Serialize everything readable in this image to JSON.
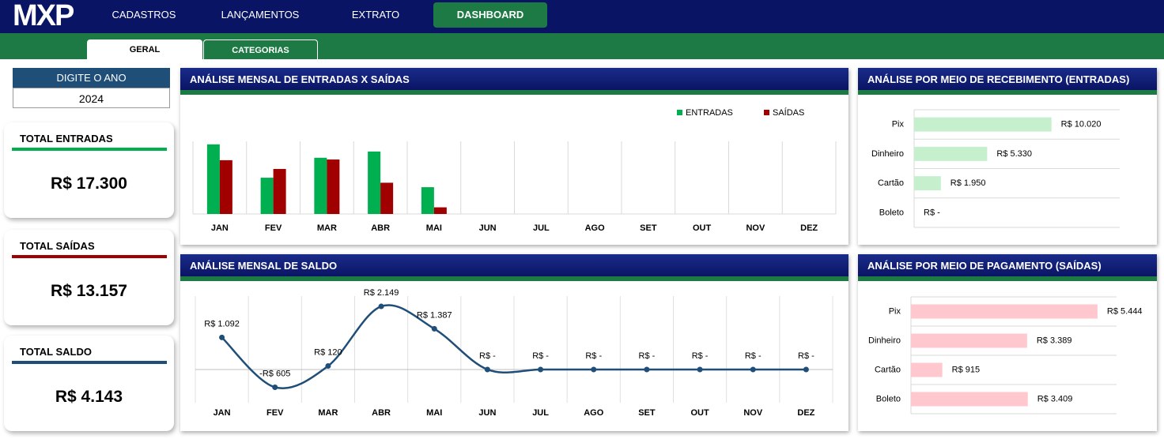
{
  "nav": {
    "logo": "MXP",
    "items": [
      "CADASTROS",
      "LANÇAMENTOS",
      "EXTRATO",
      "DASHBOARD"
    ]
  },
  "tabs": [
    "GERAL",
    "CATEGORIAS"
  ],
  "year_filter": {
    "label": "DIGITE O ANO",
    "value": "2024"
  },
  "cards": [
    {
      "title": "TOTAL ENTRADAS",
      "value": "R$ 17.300",
      "color": "#00b050"
    },
    {
      "title": "TOTAL SAÍDAS",
      "value": "R$ 13.157",
      "color": "#a00000"
    },
    {
      "title": "TOTAL SALDO",
      "value": "R$ 4.143",
      "color": "#1f4e79"
    }
  ],
  "chart_data": [
    {
      "type": "bar",
      "title": "ANÁLISE MENSAL DE ENTRADAS X SAÍDAS",
      "categories": [
        "JAN",
        "FEV",
        "MAR",
        "ABR",
        "MAI",
        "JUN",
        "JUL",
        "AGO",
        "SET",
        "OUT",
        "NOV",
        "DEZ"
      ],
      "series": [
        {
          "name": "ENTRADAS",
          "color": "#00b050",
          "values": [
            4792,
            2495,
            3870,
            4299,
            1844,
            0,
            0,
            0,
            0,
            0,
            0,
            0
          ]
        },
        {
          "name": "SAÍDAS",
          "color": "#a00000",
          "values": [
            3700,
            3100,
            3750,
            2150,
            457,
            0,
            0,
            0,
            0,
            0,
            0,
            0
          ]
        }
      ],
      "ylim": [
        0,
        5000
      ],
      "legend": "top-right"
    },
    {
      "type": "line",
      "title": "ANÁLISE MENSAL DE SALDO",
      "categories": [
        "JAN",
        "FEV",
        "MAR",
        "ABR",
        "MAI",
        "JUN",
        "JUL",
        "AGO",
        "SET",
        "OUT",
        "NOV",
        "DEZ"
      ],
      "values": [
        1092,
        -605,
        120,
        2149,
        1387,
        0,
        0,
        0,
        0,
        0,
        0,
        0
      ],
      "value_labels": [
        "R$ 1.092",
        "-R$ 605",
        "R$ 120",
        "R$ 2.149",
        "R$ 1.387",
        "R$ -",
        "R$ -",
        "R$ -",
        "R$ -",
        "R$ -",
        "R$ -",
        "R$ -"
      ],
      "color": "#1f4e79",
      "ylim": [
        -1130,
        2500
      ]
    },
    {
      "type": "hbar",
      "title": "ANÁLISE POR MEIO DE RECEBIMENTO (ENTRADAS)",
      "categories": [
        "Pix",
        "Dinheiro",
        "Cartão",
        "Boleto"
      ],
      "values": [
        10020,
        5330,
        1950,
        0
      ],
      "value_labels": [
        "R$ 10.020",
        "R$ 5.330",
        "R$ 1.950",
        "R$ -"
      ],
      "color": "#c6efce",
      "xlim": [
        0,
        15000
      ]
    },
    {
      "type": "hbar",
      "title": "ANÁLISE POR MEIO DE PAGAMENTO (SAÍDAS)",
      "categories": [
        "Pix",
        "Dinheiro",
        "Cartão",
        "Boleto"
      ],
      "values": [
        5444,
        3389,
        915,
        3409
      ],
      "value_labels": [
        "R$ 5.444",
        "R$ 3.389",
        "R$ 915",
        "R$ 3.409"
      ],
      "color": "#ffc7ce",
      "xlim": [
        0,
        6000
      ]
    }
  ]
}
